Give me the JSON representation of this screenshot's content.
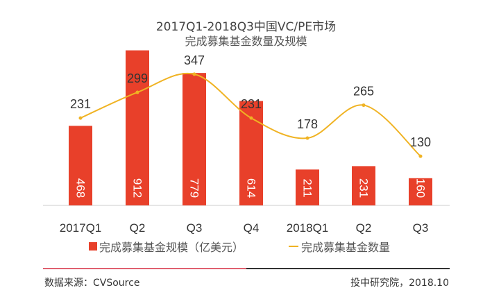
{
  "chart_data": {
    "type": "bar+line",
    "title": "2017Q1-2018Q3中国VC/PE市场",
    "subtitle": "完成募集基金数量及规模",
    "categories": [
      "2017Q1",
      "Q2",
      "Q3",
      "Q4",
      "2018Q1",
      "Q2",
      "Q3"
    ],
    "series": [
      {
        "name": "完成募集基金规模（亿美元）",
        "type": "bar",
        "color": "#e8402a",
        "values": [
          468,
          912,
          779,
          614,
          211,
          231,
          160
        ]
      },
      {
        "name": "完成募集基金数量",
        "type": "line",
        "color": "#f0b323",
        "smooth": true,
        "values": [
          231,
          299,
          347,
          231,
          178,
          265,
          130
        ]
      }
    ],
    "legend_position": "bottom",
    "grid": false
  },
  "footer": {
    "source": "数据来源：CVSource",
    "credit": "投中研究院，2018.10"
  }
}
